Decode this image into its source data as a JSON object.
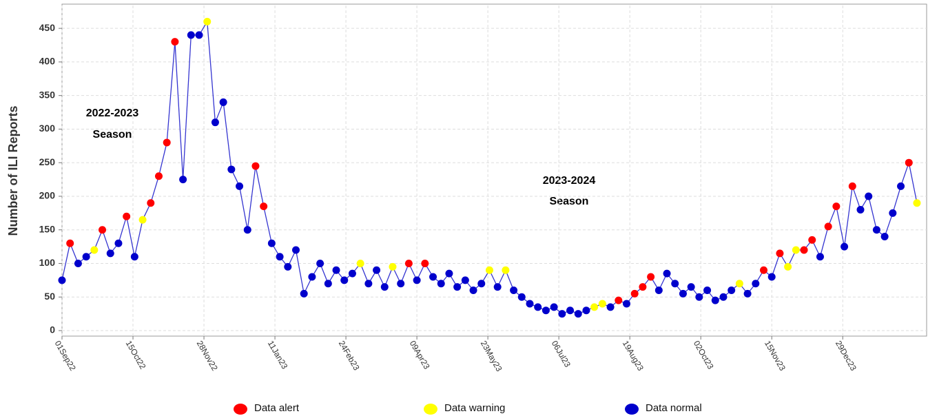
{
  "chart_data": {
    "type": "line",
    "y_label": "Number of ILI Reports",
    "annotations": [
      [
        "2022-2023",
        "Season"
      ],
      [
        "2023-2024",
        "Season"
      ]
    ],
    "line_color": "#3434d0",
    "grid": true,
    "x": [
      "2022-09-01",
      "2022-09-06",
      "2022-09-11",
      "2022-09-16",
      "2022-09-21",
      "2022-09-26",
      "2022-10-01",
      "2022-10-06",
      "2022-10-11",
      "2022-10-16",
      "2022-10-21",
      "2022-10-26",
      "2022-10-31",
      "2022-11-05",
      "2022-11-10",
      "2022-11-15",
      "2022-11-20",
      "2022-11-25",
      "2022-11-30",
      "2022-12-05",
      "2022-12-10",
      "2022-12-15",
      "2022-12-20",
      "2022-12-25",
      "2022-12-30",
      "2023-01-04",
      "2023-01-09",
      "2023-01-14",
      "2023-01-19",
      "2023-01-24",
      "2023-01-29",
      "2023-02-03",
      "2023-02-08",
      "2023-02-13",
      "2023-02-18",
      "2023-02-23",
      "2023-02-28",
      "2023-03-05",
      "2023-03-10",
      "2023-03-15",
      "2023-03-20",
      "2023-03-25",
      "2023-03-30",
      "2023-04-04",
      "2023-04-09",
      "2023-04-14",
      "2023-04-19",
      "2023-04-24",
      "2023-04-29",
      "2023-05-04",
      "2023-05-09",
      "2023-05-14",
      "2023-05-19",
      "2023-05-24",
      "2023-05-29",
      "2023-06-03",
      "2023-06-08",
      "2023-06-13",
      "2023-06-18",
      "2023-06-23",
      "2023-06-28",
      "2023-07-03",
      "2023-07-08",
      "2023-07-13",
      "2023-07-18",
      "2023-07-23",
      "2023-07-28",
      "2023-08-02",
      "2023-08-07",
      "2023-08-12",
      "2023-08-17",
      "2023-08-22",
      "2023-08-27",
      "2023-09-01",
      "2023-09-06",
      "2023-09-11",
      "2023-09-16",
      "2023-09-21",
      "2023-09-26",
      "2023-10-01",
      "2023-10-06",
      "2023-10-11",
      "2023-10-16",
      "2023-10-21",
      "2023-10-26",
      "2023-10-31",
      "2023-11-05",
      "2023-11-10",
      "2023-11-15",
      "2023-11-20",
      "2023-11-25",
      "2023-11-30",
      "2023-12-05",
      "2023-12-10",
      "2023-12-15",
      "2023-12-20",
      "2023-12-25",
      "2023-12-30",
      "2024-01-04",
      "2024-01-09",
      "2024-01-14",
      "2024-01-19",
      "2024-01-24",
      "2024-01-29",
      "2024-02-03",
      "2024-02-08",
      "2024-02-13"
    ],
    "series": [
      {
        "name": "Data alert",
        "color": "#ff0000",
        "values": [
          null,
          130,
          null,
          null,
          null,
          150,
          null,
          null,
          170,
          null,
          null,
          190,
          230,
          280,
          430,
          null,
          null,
          null,
          null,
          null,
          null,
          null,
          null,
          null,
          245,
          185,
          null,
          null,
          null,
          null,
          null,
          null,
          null,
          null,
          null,
          null,
          null,
          null,
          null,
          null,
          null,
          null,
          null,
          100,
          null,
          100,
          null,
          null,
          null,
          null,
          null,
          null,
          null,
          null,
          null,
          null,
          null,
          null,
          null,
          null,
          null,
          null,
          null,
          null,
          null,
          null,
          null,
          null,
          null,
          45,
          null,
          55,
          65,
          80,
          null,
          null,
          null,
          null,
          null,
          null,
          null,
          null,
          null,
          null,
          null,
          null,
          null,
          90,
          null,
          115,
          null,
          null,
          120,
          135,
          null,
          155,
          185,
          null,
          215,
          null,
          null,
          null,
          null,
          null,
          null,
          250,
          null
        ]
      },
      {
        "name": "Data warning",
        "color": "#ffff00",
        "values": [
          null,
          null,
          null,
          null,
          120,
          null,
          null,
          null,
          null,
          null,
          165,
          null,
          null,
          null,
          null,
          null,
          null,
          null,
          460,
          null,
          null,
          null,
          null,
          null,
          null,
          null,
          null,
          null,
          null,
          null,
          null,
          null,
          null,
          null,
          null,
          null,
          null,
          100,
          null,
          null,
          null,
          95,
          null,
          null,
          null,
          null,
          null,
          null,
          null,
          null,
          null,
          null,
          null,
          90,
          null,
          90,
          null,
          null,
          null,
          null,
          null,
          null,
          null,
          null,
          null,
          null,
          35,
          40,
          null,
          null,
          null,
          null,
          null,
          null,
          null,
          null,
          null,
          null,
          null,
          null,
          null,
          null,
          null,
          null,
          70,
          null,
          null,
          null,
          null,
          null,
          95,
          120,
          null,
          null,
          null,
          null,
          null,
          null,
          null,
          null,
          null,
          null,
          null,
          null,
          null,
          null,
          190
        ]
      },
      {
        "name": "Data normal",
        "color": "#0000cc",
        "values": [
          75,
          null,
          100,
          110,
          null,
          null,
          115,
          130,
          null,
          110,
          null,
          null,
          null,
          null,
          null,
          225,
          440,
          440,
          null,
          310,
          340,
          240,
          215,
          150,
          null,
          null,
          130,
          110,
          95,
          120,
          55,
          80,
          100,
          70,
          90,
          75,
          85,
          null,
          70,
          90,
          65,
          null,
          70,
          null,
          75,
          null,
          80,
          70,
          85,
          65,
          75,
          60,
          70,
          null,
          65,
          null,
          60,
          50,
          40,
          35,
          30,
          35,
          25,
          30,
          25,
          30,
          null,
          null,
          35,
          null,
          40,
          null,
          null,
          null,
          60,
          85,
          70,
          55,
          65,
          50,
          60,
          45,
          50,
          60,
          null,
          55,
          70,
          null,
          80,
          null,
          null,
          null,
          null,
          null,
          110,
          null,
          null,
          125,
          null,
          180,
          200,
          150,
          140,
          175,
          215,
          null,
          null
        ]
      }
    ],
    "xlim": [
      "2022-09-01",
      "2024-02-19"
    ],
    "xticks": [
      {
        "value": "2022-09-01",
        "label": "01Sep22"
      },
      {
        "value": "2022-10-15",
        "label": "15Oct22"
      },
      {
        "value": "2022-11-28",
        "label": "28Nov22"
      },
      {
        "value": "2023-01-11",
        "label": "11Jan23"
      },
      {
        "value": "2023-02-24",
        "label": "24Feb23"
      },
      {
        "value": "2023-04-09",
        "label": "09Apr23"
      },
      {
        "value": "2023-05-23",
        "label": "23May23"
      },
      {
        "value": "2023-07-06",
        "label": "06Jul23"
      },
      {
        "value": "2023-08-19",
        "label": "19Aug23"
      },
      {
        "value": "2023-10-02",
        "label": "02Oct23"
      },
      {
        "value": "2023-11-15",
        "label": "15Nov23"
      },
      {
        "value": "2023-12-29",
        "label": "29Dec23"
      }
    ],
    "ylim": [
      0,
      484
    ],
    "yticks": [
      0,
      50,
      100,
      150,
      200,
      250,
      300,
      350,
      400,
      450
    ]
  }
}
